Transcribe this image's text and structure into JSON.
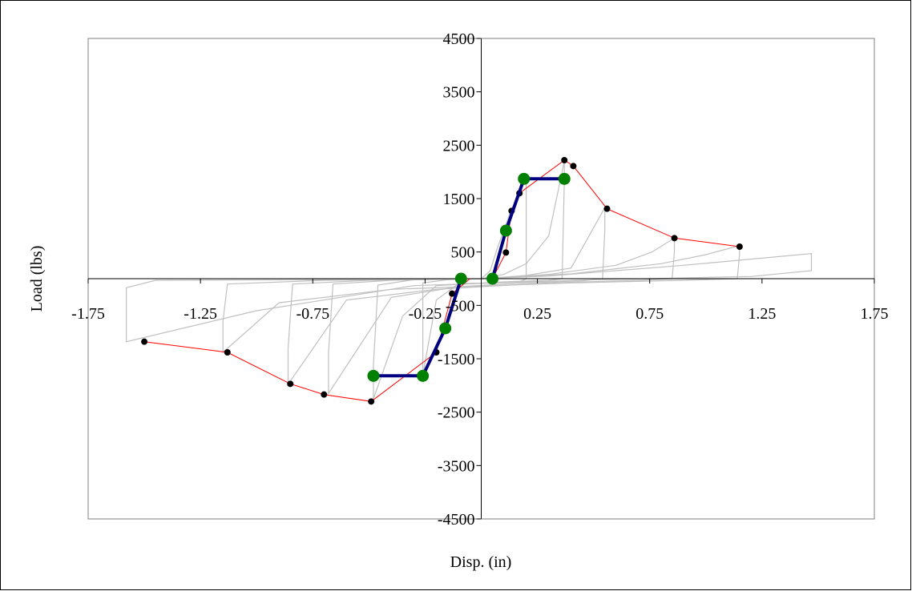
{
  "chart_data": {
    "type": "scatter",
    "title": "",
    "xlabel": "Disp. (in)",
    "ylabel": "Load (lbs)",
    "xlim": [
      -1.75,
      1.75
    ],
    "ylim": [
      -4500,
      4500
    ],
    "x_ticks": [
      "-1.75",
      "-1.25",
      "-0.75",
      "-0.25",
      "0.25",
      "0.75",
      "1.25",
      "1.75"
    ],
    "y_ticks": [
      "4500",
      "3500",
      "2500",
      "1500",
      "500",
      "-500",
      "-1500",
      "-2500",
      "-3500",
      "-4500"
    ],
    "grid": false,
    "legend": false,
    "series": [
      {
        "kind": "hysteresis",
        "color": "#c0c0c0",
        "loops": [
          [
            [
              0.0,
              0
            ],
            [
              0.04,
              150
            ],
            [
              0.07,
              550
            ],
            [
              0.1,
              900
            ],
            [
              0.13,
              1250
            ],
            [
              0.17,
              1620
            ],
            [
              0.2,
              1860
            ],
            [
              0.2,
              0
            ],
            [
              0.17,
              -60
            ],
            [
              0.05,
              -80
            ],
            [
              -0.1,
              -90
            ],
            [
              -0.2,
              -400
            ],
            [
              -0.26,
              -1800
            ],
            [
              -0.26,
              -80
            ],
            [
              -0.15,
              -20
            ],
            [
              0.0,
              0
            ]
          ],
          [
            [
              0.0,
              0
            ],
            [
              0.1,
              80
            ],
            [
              0.2,
              280
            ],
            [
              0.3,
              800
            ],
            [
              0.37,
              2200
            ],
            [
              0.37,
              1850
            ],
            [
              0.36,
              0
            ],
            [
              0.3,
              -30
            ],
            [
              0.1,
              -60
            ],
            [
              -0.2,
              -130
            ],
            [
              -0.35,
              -700
            ],
            [
              -0.48,
              -2250
            ],
            [
              -0.48,
              -1600
            ],
            [
              -0.46,
              -120
            ],
            [
              -0.3,
              -20
            ],
            [
              0.0,
              0
            ]
          ],
          [
            [
              0.0,
              0
            ],
            [
              0.2,
              60
            ],
            [
              0.4,
              200
            ],
            [
              0.55,
              1330
            ],
            [
              0.55,
              900
            ],
            [
              0.54,
              0
            ],
            [
              0.45,
              -40
            ],
            [
              0.2,
              -80
            ],
            [
              -0.1,
              -150
            ],
            [
              -0.4,
              -350
            ],
            [
              -0.68,
              -2150
            ],
            [
              -0.68,
              -1400
            ],
            [
              -0.66,
              -100
            ],
            [
              -0.4,
              -30
            ],
            [
              0.0,
              0
            ]
          ],
          [
            [
              0.0,
              0
            ],
            [
              0.3,
              80
            ],
            [
              0.6,
              250
            ],
            [
              0.76,
              500
            ],
            [
              0.86,
              760
            ],
            [
              0.86,
              500
            ],
            [
              0.85,
              0
            ],
            [
              0.7,
              -30
            ],
            [
              0.3,
              -80
            ],
            [
              -0.2,
              -200
            ],
            [
              -0.6,
              -400
            ],
            [
              -0.86,
              -1980
            ],
            [
              -0.86,
              -1300
            ],
            [
              -0.84,
              -100
            ],
            [
              -0.5,
              -30
            ],
            [
              0.0,
              0
            ]
          ],
          [
            [
              0.0,
              0
            ],
            [
              0.4,
              90
            ],
            [
              0.8,
              280
            ],
            [
              1.0,
              450
            ],
            [
              1.15,
              620
            ],
            [
              1.15,
              450
            ],
            [
              1.14,
              0
            ],
            [
              0.9,
              -30
            ],
            [
              0.4,
              -80
            ],
            [
              -0.4,
              -200
            ],
            [
              -0.9,
              -450
            ],
            [
              -1.15,
              -1380
            ],
            [
              -1.15,
              -800
            ],
            [
              -1.13,
              -100
            ],
            [
              -0.7,
              -30
            ],
            [
              0.0,
              0
            ]
          ]
        ],
        "envelope_extremes": [
          [
            1.47,
            470
          ],
          [
            1.47,
            150
          ],
          [
            -1.58,
            -1180
          ],
          [
            -1.58,
            -170
          ],
          [
            -1.45,
            -30
          ],
          [
            1.2,
            30
          ]
        ]
      },
      {
        "kind": "envelope",
        "color": "#ff0000",
        "points": [
          [
            0.05,
            0
          ],
          [
            0.11,
            490
          ],
          [
            0.135,
            1270
          ],
          [
            0.17,
            1600
          ],
          [
            0.37,
            2220
          ],
          [
            0.41,
            2110
          ],
          [
            0.56,
            1310
          ],
          [
            0.86,
            760
          ],
          [
            1.15,
            600
          ]
        ],
        "negative_points": [
          [
            -0.05,
            0
          ],
          [
            -0.13,
            -280
          ],
          [
            -0.2,
            -1380
          ],
          [
            -0.49,
            -2300
          ],
          [
            -0.7,
            -2170
          ],
          [
            -0.85,
            -1970
          ],
          [
            -1.13,
            -1380
          ],
          [
            -1.5,
            -1180
          ]
        ]
      },
      {
        "kind": "bilinear",
        "color": "#000080",
        "points": [
          [
            0.05,
            0
          ],
          [
            0.11,
            900
          ],
          [
            0.19,
            1870
          ],
          [
            0.37,
            1870
          ]
        ],
        "negative_points": [
          [
            -0.09,
            0
          ],
          [
            -0.16,
            -930
          ],
          [
            -0.26,
            -1820
          ],
          [
            -0.48,
            -1820
          ]
        ]
      }
    ]
  }
}
